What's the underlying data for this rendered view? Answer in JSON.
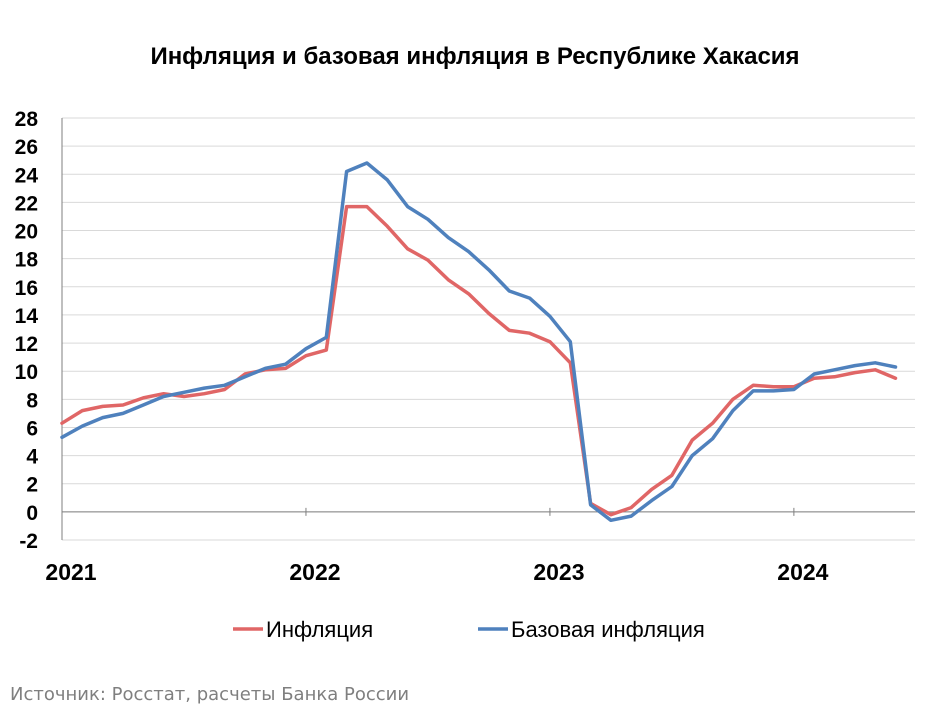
{
  "chart_data": {
    "type": "line",
    "title": "Инфляция и базовая инфляция в Республике Хакасия",
    "xlabel": "",
    "ylabel": "",
    "ylim": [
      -2,
      28
    ],
    "yticks": [
      -2,
      0,
      2,
      4,
      6,
      8,
      10,
      12,
      14,
      16,
      18,
      20,
      22,
      24,
      26,
      28
    ],
    "xtick_labels": [
      "2021",
      "2022",
      "2023",
      "2024"
    ],
    "grid": true,
    "legend_position": "bottom",
    "x": [
      "2021-01",
      "2021-02",
      "2021-03",
      "2021-04",
      "2021-05",
      "2021-06",
      "2021-07",
      "2021-08",
      "2021-09",
      "2021-10",
      "2021-11",
      "2021-12",
      "2022-01",
      "2022-02",
      "2022-03",
      "2022-04",
      "2022-05",
      "2022-06",
      "2022-07",
      "2022-08",
      "2022-09",
      "2022-10",
      "2022-11",
      "2022-12",
      "2023-01",
      "2023-02",
      "2023-03",
      "2023-04",
      "2023-05",
      "2023-06",
      "2023-07",
      "2023-08",
      "2023-09",
      "2023-10",
      "2023-11",
      "2023-12",
      "2024-01",
      "2024-02",
      "2024-03",
      "2024-04",
      "2024-05",
      "2024-06"
    ],
    "series": [
      {
        "name": "Инфляция",
        "color": "#e06666",
        "values": [
          6.3,
          7.2,
          7.5,
          7.6,
          8.1,
          8.4,
          8.2,
          8.4,
          8.7,
          9.8,
          10.1,
          10.2,
          11.1,
          11.5,
          21.7,
          21.7,
          20.3,
          18.7,
          17.9,
          16.5,
          15.5,
          14.1,
          12.9,
          12.7,
          12.1,
          10.6,
          0.6,
          -0.2,
          0.3,
          1.6,
          2.6,
          5.1,
          6.3,
          8.0,
          9.0,
          8.9,
          8.9,
          9.5,
          9.6,
          9.9,
          10.1,
          9.5
        ]
      },
      {
        "name": "Базовая инфляция",
        "color": "#4f81bd",
        "values": [
          5.3,
          6.1,
          6.7,
          7.0,
          7.6,
          8.2,
          8.5,
          8.8,
          9.0,
          9.6,
          10.2,
          10.5,
          11.6,
          12.4,
          24.2,
          24.8,
          23.6,
          21.7,
          20.8,
          19.5,
          18.5,
          17.2,
          15.7,
          15.2,
          13.9,
          12.1,
          0.5,
          -0.6,
          -0.3,
          0.8,
          1.8,
          4.0,
          5.2,
          7.2,
          8.6,
          8.6,
          8.7,
          9.8,
          10.1,
          10.4,
          10.6,
          10.3
        ]
      }
    ]
  },
  "source_text": "Источник: Росстат, расчеты Банка России"
}
